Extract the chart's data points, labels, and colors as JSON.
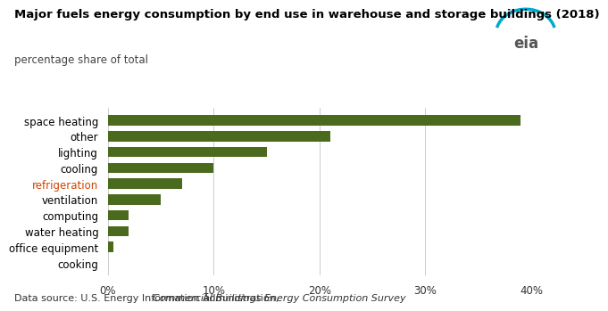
{
  "title": "Major fuels energy consumption by end use in warehouse and storage buildings (2018)",
  "subtitle": "percentage share of total",
  "categories": [
    "space heating",
    "other",
    "lighting",
    "cooling",
    "refrigeration",
    "ventilation",
    "computing",
    "water heating",
    "office equipment",
    "cooking"
  ],
  "values": [
    39,
    21,
    15,
    10,
    7,
    5,
    2,
    2,
    0.5,
    0
  ],
  "bar_color": "#4a6b1e",
  "xlim": [
    0,
    40
  ],
  "xtick_values": [
    0,
    10,
    20,
    30,
    40
  ],
  "xtick_labels": [
    "0%",
    "10%",
    "20%",
    "30%",
    "40%"
  ],
  "bg_color": "#ffffff",
  "data_source_normal": "Data source: U.S. Energy Information Administration, ",
  "data_source_italic": "Commercial Buildings Energy Consumption Survey",
  "title_fontsize": 9.5,
  "subtitle_fontsize": 8.5,
  "tick_fontsize": 8.5,
  "label_fontsize": 8.5,
  "datasource_fontsize": 8.0,
  "refrigeration_color": "#cc4400",
  "grid_color": "#cccccc",
  "label_color": "#000000",
  "subtitle_color": "#444444"
}
